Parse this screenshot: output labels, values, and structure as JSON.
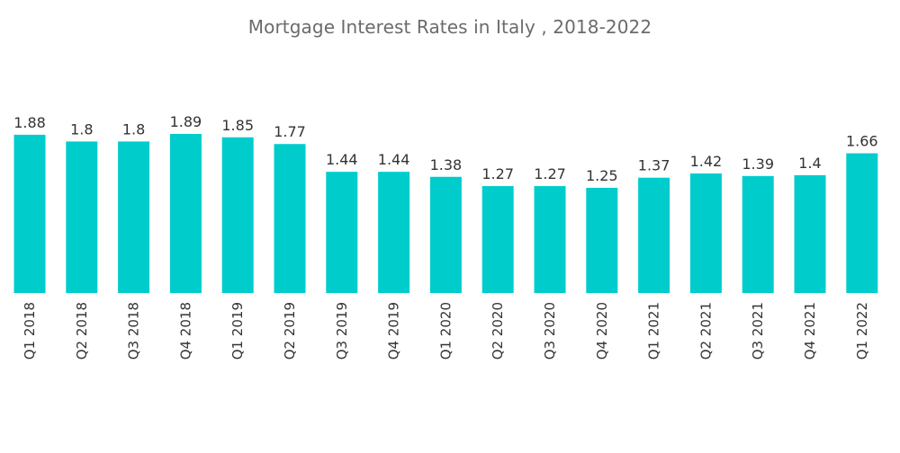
{
  "chart_data": {
    "type": "bar",
    "title": "Mortgage Interest Rates in Italy , 2018-2022",
    "xlabel": "",
    "ylabel": "",
    "categories": [
      "Q1 2018",
      "Q2 2018",
      "Q3 2018",
      "Q4 2018",
      "Q1 2019",
      "Q2 2019",
      "Q3 2019",
      "Q4 2019",
      "Q1 2020",
      "Q2 2020",
      "Q3 2020",
      "Q4 2020",
      "Q1 2021",
      "Q2 2021",
      "Q3 2021",
      "Q4 2021",
      "Q1 2022"
    ],
    "values": [
      1.88,
      1.8,
      1.8,
      1.89,
      1.85,
      1.77,
      1.44,
      1.44,
      1.38,
      1.27,
      1.27,
      1.25,
      1.37,
      1.42,
      1.39,
      1.4,
      1.66
    ],
    "value_labels": [
      "1.88",
      "1.8",
      "1.8",
      "1.89",
      "1.85",
      "1.77",
      "1.44",
      "1.44",
      "1.38",
      "1.27",
      "1.27",
      "1.25",
      "1.37",
      "1.42",
      "1.39",
      "1.4",
      "1.66"
    ],
    "ylim": [
      0,
      1.89
    ],
    "grid": false,
    "legend": "none",
    "colors": {
      "bar": "#00CCCC",
      "label": "#333333",
      "title": "#6b6b6b"
    }
  }
}
